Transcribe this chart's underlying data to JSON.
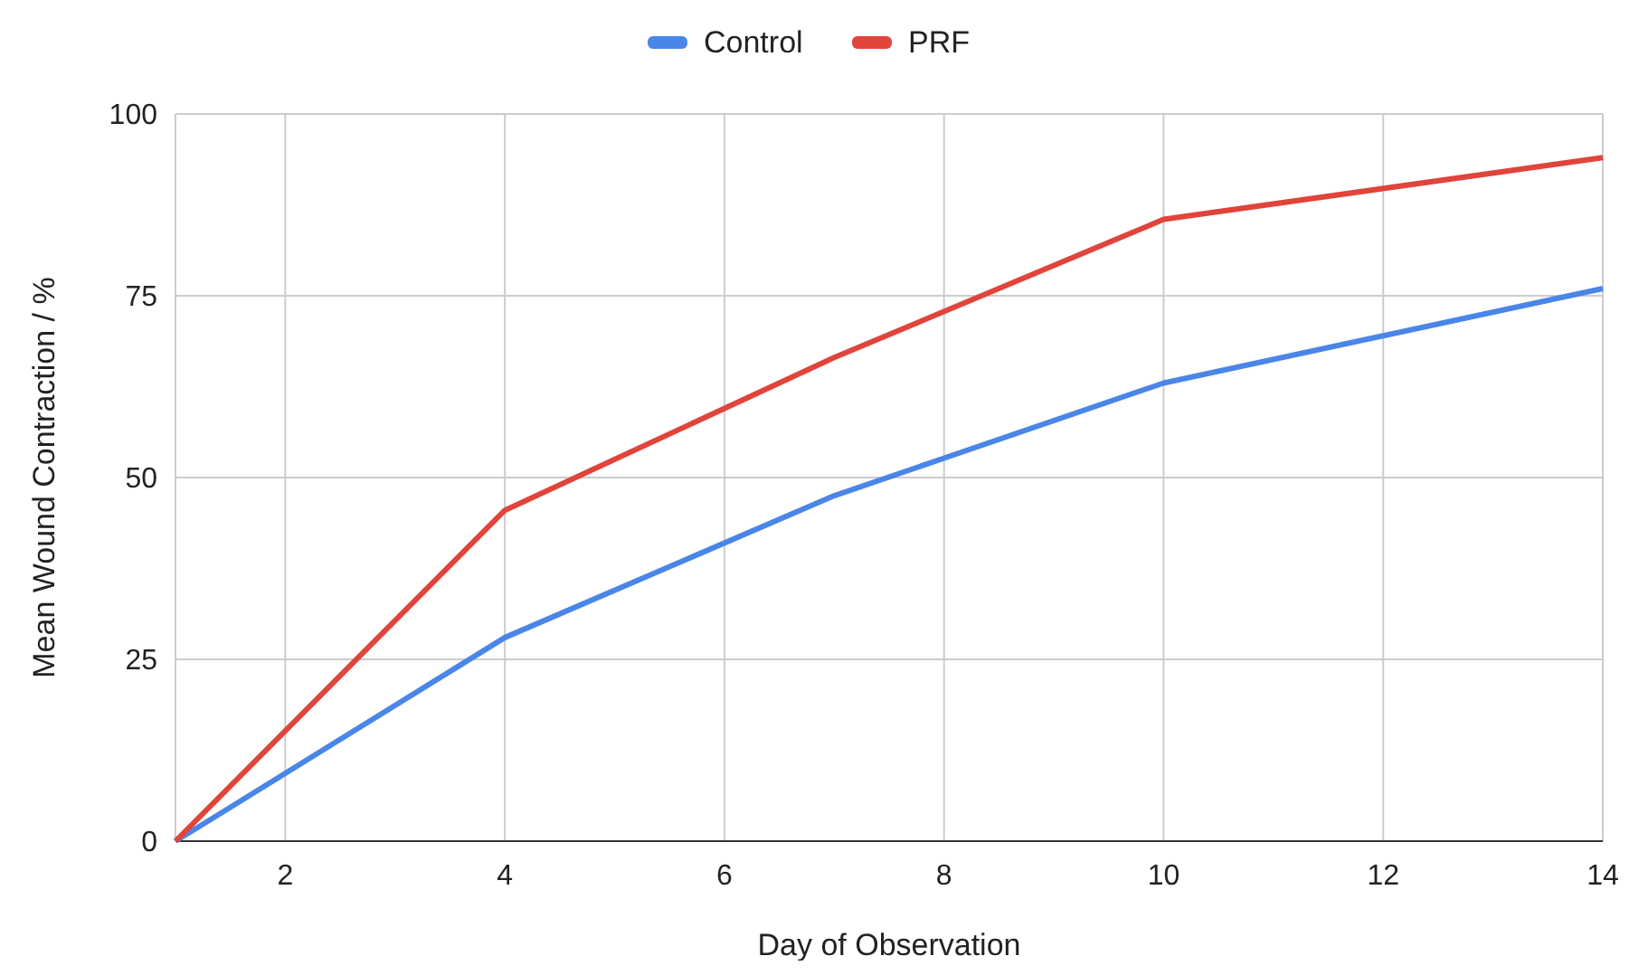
{
  "chart_data": {
    "type": "line",
    "xlabel": "Day of Observation",
    "ylabel": "Mean Wound Contraction / %",
    "x": [
      1,
      4,
      7,
      10,
      14
    ],
    "series": [
      {
        "name": "Control",
        "color": "#4a86e8",
        "values": [
          0,
          28,
          47.5,
          63,
          76
        ]
      },
      {
        "name": "PRF",
        "color": "#e0443a",
        "values": [
          0,
          45.5,
          66.5,
          85.5,
          94
        ]
      }
    ],
    "xlim": [
      1,
      14
    ],
    "xticks": [
      2,
      4,
      6,
      8,
      10,
      12,
      14
    ],
    "ylim": [
      0,
      100
    ],
    "yticks": [
      0,
      25,
      50,
      75,
      100
    ],
    "grid": true,
    "legend": "top",
    "marker": "none",
    "line_style": "solid"
  }
}
